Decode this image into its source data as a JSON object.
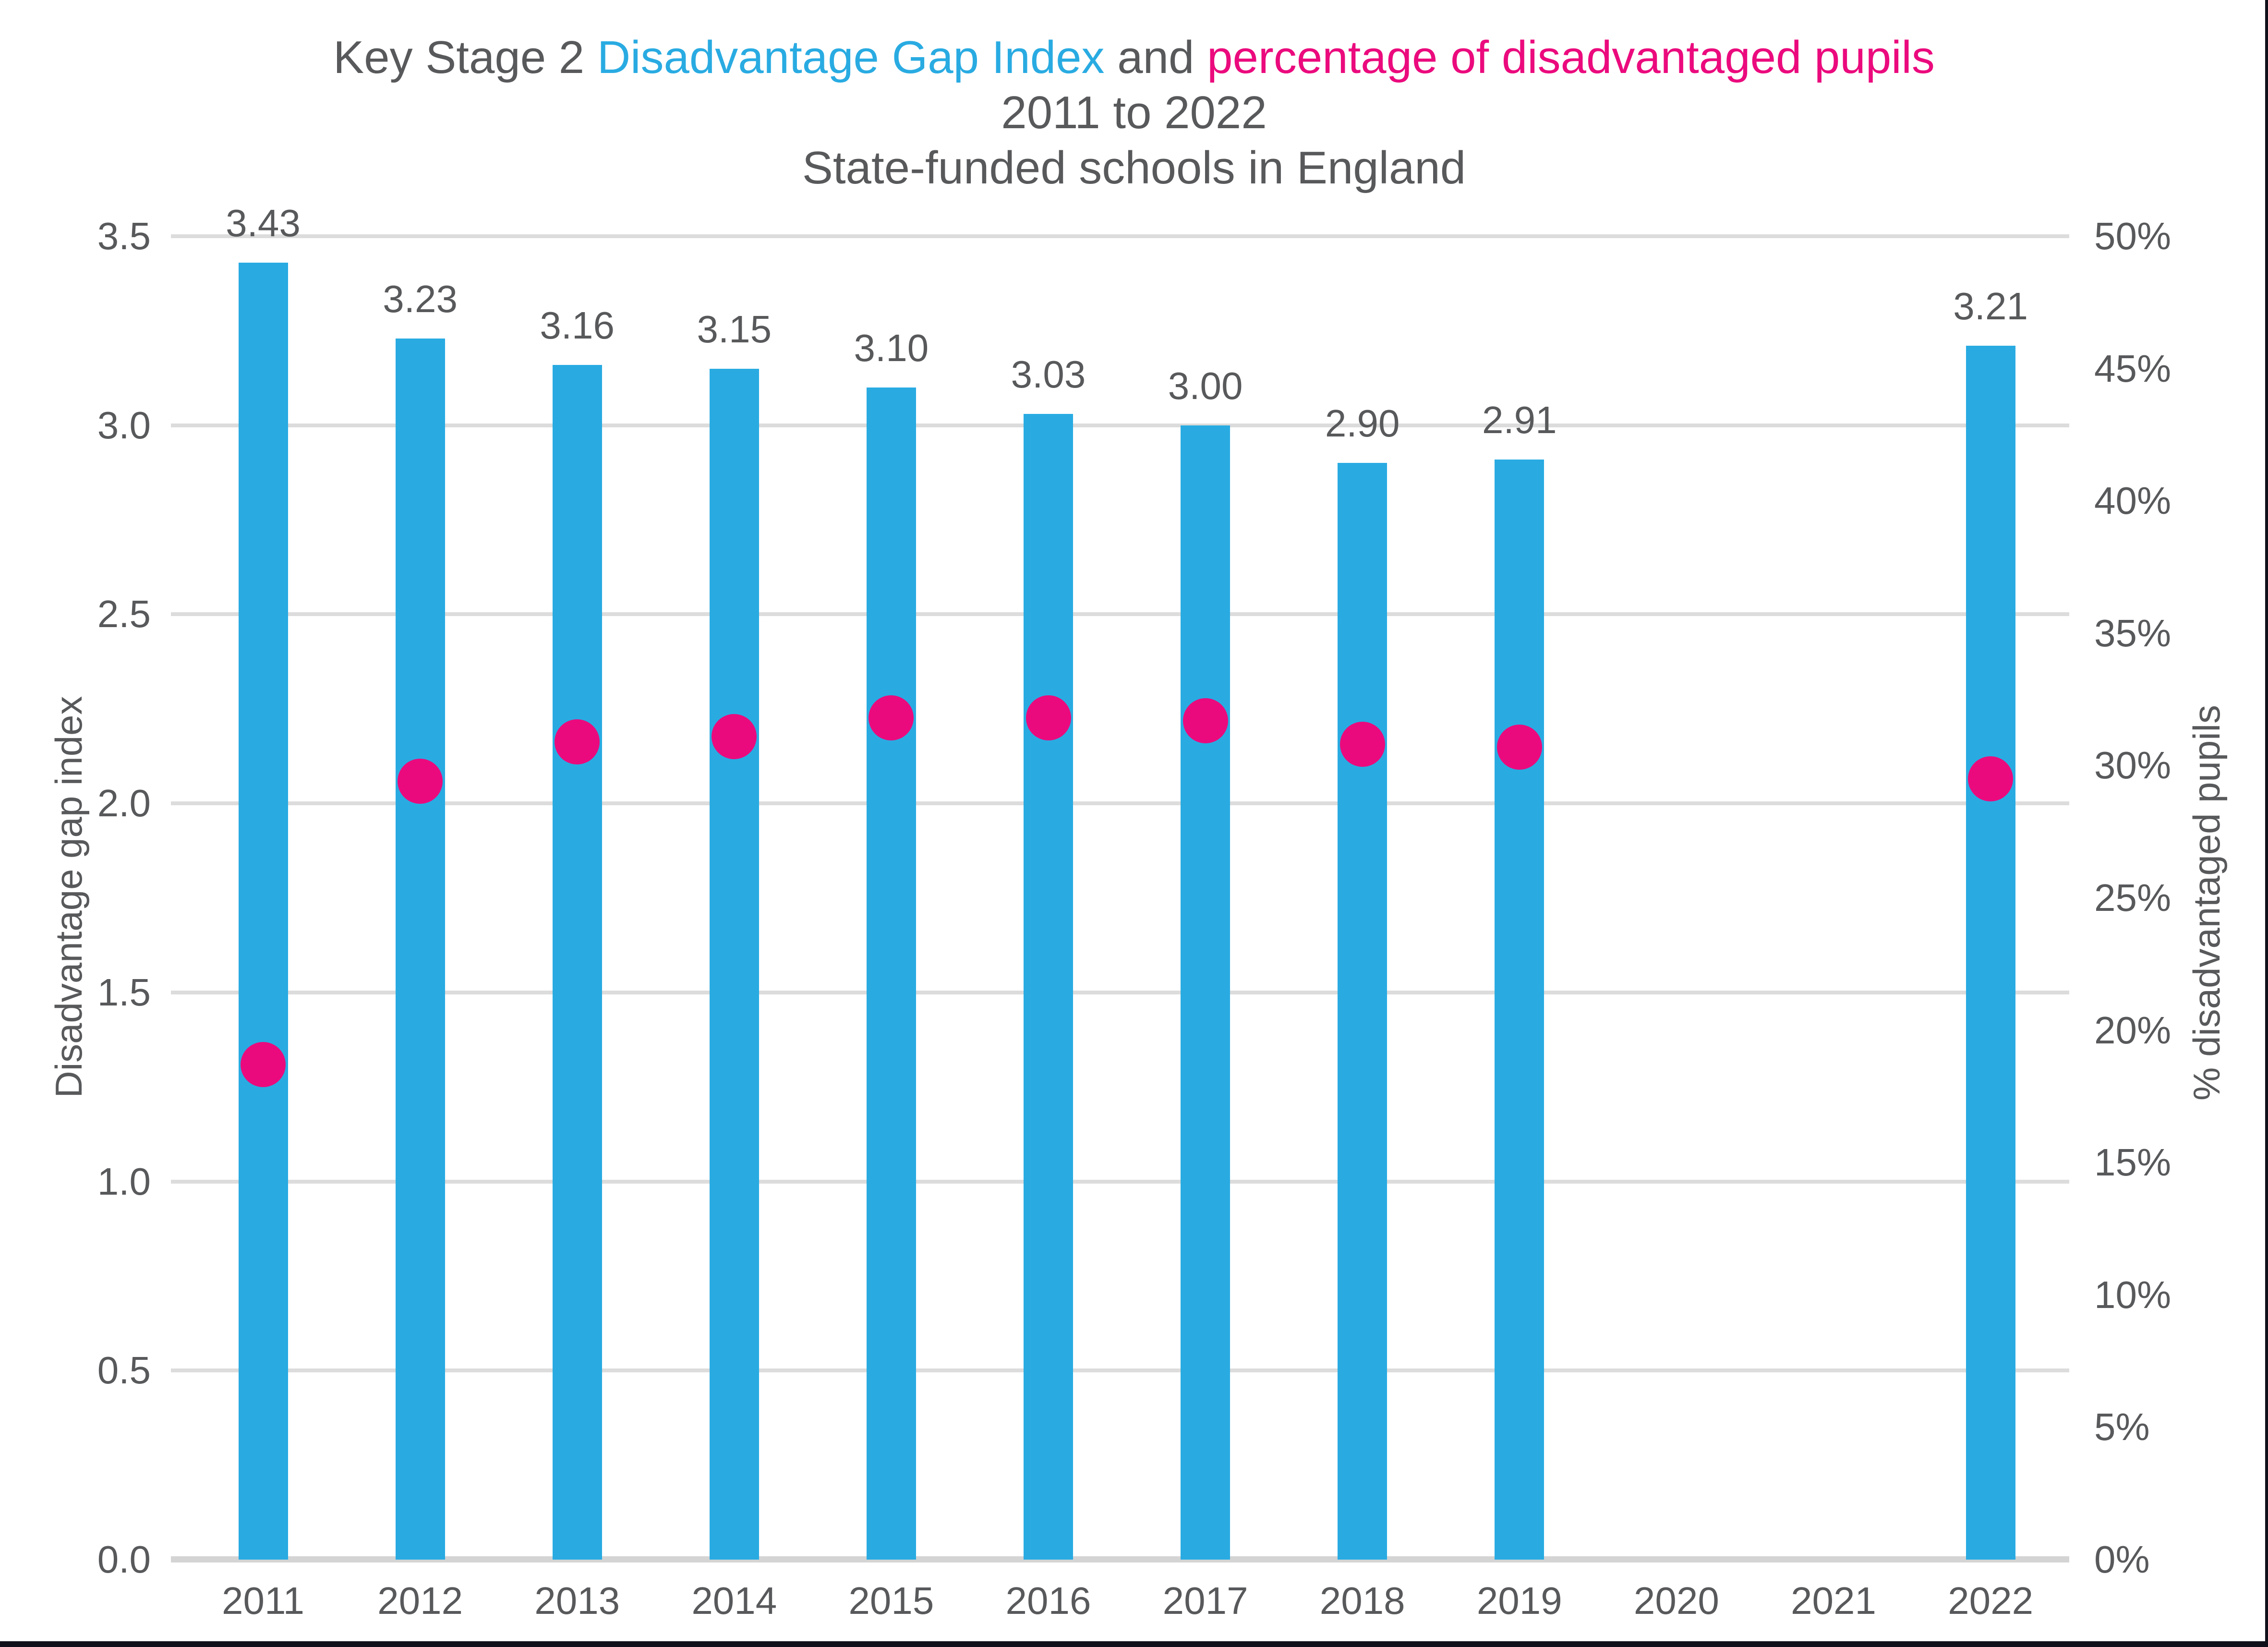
{
  "title": {
    "line1_segments": [
      {
        "text": "Key Stage 2 ",
        "color": "#58595B"
      },
      {
        "text": "Disadvantage Gap Index",
        "color": "#29ABE2"
      },
      {
        "text": " and ",
        "color": "#58595B"
      },
      {
        "text": "percentage of disadvantaged pupils",
        "color": "#EB0A7D"
      }
    ],
    "line2": "2011 to 2022",
    "line3": "State-funded schools in England"
  },
  "colors": {
    "bar": "#29ABE2",
    "dot": "#EB0A7D",
    "text": "#58595B",
    "gridline": "#DCDCDC",
    "border": "#10101B"
  },
  "chart_data": {
    "type": "bar",
    "subtype": "bar-with-scatter-overlay-dual-axis",
    "title": "Key Stage 2 Disadvantage Gap Index and percentage of disadvantaged pupils 2011 to 2022 State-funded schools in England",
    "categories": [
      "2011",
      "2012",
      "2013",
      "2014",
      "2015",
      "2016",
      "2017",
      "2018",
      "2019",
      "2020",
      "2021",
      "2022"
    ],
    "series": [
      {
        "name": "Disadvantage Gap Index",
        "type": "bar",
        "axis": "left",
        "color": "#29ABE2",
        "values": [
          3.43,
          3.23,
          3.16,
          3.15,
          3.1,
          3.03,
          3.0,
          2.9,
          2.91,
          null,
          null,
          3.21
        ],
        "labels": [
          "3.43",
          "3.23",
          "3.16",
          "3.15",
          "3.10",
          "3.03",
          "3.00",
          "2.90",
          "2.91",
          null,
          null,
          "3.21"
        ]
      },
      {
        "name": "% disadvantaged pupils",
        "type": "scatter",
        "axis": "right",
        "color": "#EB0A7D",
        "values": [
          18.7,
          29.4,
          30.9,
          31.1,
          31.8,
          31.8,
          31.7,
          30.8,
          30.7,
          null,
          null,
          29.5
        ]
      }
    ],
    "left_axis": {
      "label": "Disadvantage gap index",
      "min": 0,
      "max": 3.5,
      "ticks": [
        "0.0",
        "0.5",
        "1.0",
        "1.5",
        "2.0",
        "2.5",
        "3.0",
        "3.5"
      ]
    },
    "right_axis": {
      "label": "% disadvantaged pupils",
      "min": 0,
      "max": 50,
      "ticks": [
        "0%",
        "5%",
        "10%",
        "15%",
        "20%",
        "25%",
        "30%",
        "35%",
        "40%",
        "45%",
        "50%"
      ]
    },
    "grid": true,
    "legend": "none"
  }
}
